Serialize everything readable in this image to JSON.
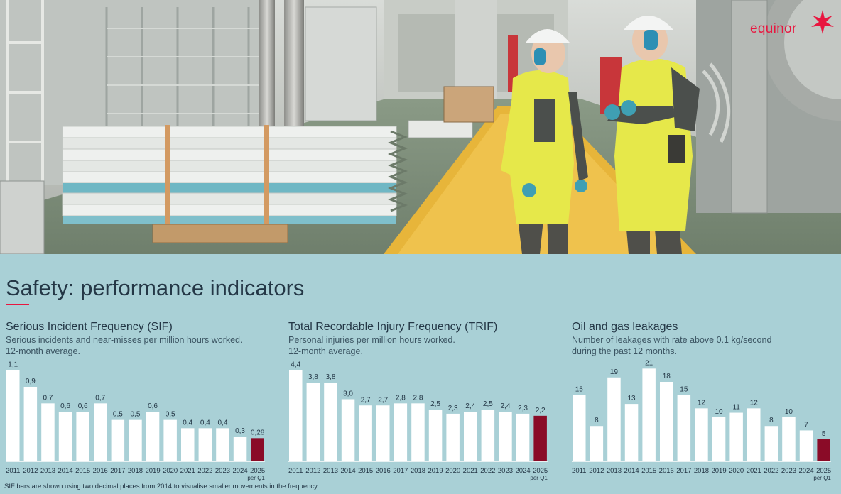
{
  "brand": {
    "logo_text": "equinor"
  },
  "page": {
    "title": "Safety: performance indicators",
    "footnote": "SIF bars are shown using two decimal places from 2014 to visualise smaller movements in the frequency."
  },
  "colors": {
    "bar": "#ffffff",
    "highlight": "#8a0b27",
    "accent": "#e8163f",
    "text": "#243746",
    "background": "#a9d0d6"
  },
  "chart_data": [
    {
      "type": "bar",
      "title": "Serious Incident Frequency (SIF)",
      "subtitle_lines": [
        "Serious incidents and near-misses per million hours worked.",
        "12-month average."
      ],
      "categories": [
        "2011",
        "2012",
        "2013",
        "2014",
        "2015",
        "2016",
        "2017",
        "2018",
        "2019",
        "2020",
        "2021",
        "2022",
        "2023",
        "2024",
        "2025"
      ],
      "last_category_note": "per Q1",
      "values": [
        1.1,
        0.9,
        0.7,
        0.6,
        0.6,
        0.7,
        0.5,
        0.5,
        0.6,
        0.5,
        0.4,
        0.4,
        0.4,
        0.3,
        0.28
      ],
      "value_labels": [
        "1,1",
        "0,9",
        "0,7",
        "0,6",
        "0,6",
        "0,7",
        "0,5",
        "0,5",
        "0,6",
        "0,5",
        "0,4",
        "0,4",
        "0,4",
        "0,3",
        "0,28"
      ],
      "highlight_last": true,
      "ylim": [
        0,
        1.2
      ]
    },
    {
      "type": "bar",
      "title": "Total Recordable Injury Frequency (TRIF)",
      "subtitle_lines": [
        "Personal injuries per million hours worked.",
        "12-month average."
      ],
      "categories": [
        "2011",
        "2012",
        "2013",
        "2014",
        "2015",
        "2016",
        "2017",
        "2018",
        "2019",
        "2020",
        "2021",
        "2022",
        "2023",
        "2024",
        "2025"
      ],
      "last_category_note": "per Q1",
      "values": [
        4.4,
        3.8,
        3.8,
        3.0,
        2.7,
        2.7,
        2.8,
        2.8,
        2.5,
        2.3,
        2.4,
        2.5,
        2.4,
        2.3,
        2.2
      ],
      "value_labels": [
        "4,4",
        "3,8",
        "3,8",
        "3,0",
        "2,7",
        "2,7",
        "2,8",
        "2,8",
        "2,5",
        "2,3",
        "2,4",
        "2,5",
        "2,4",
        "2,3",
        "2,2"
      ],
      "highlight_last": true,
      "ylim": [
        0,
        4.8
      ]
    },
    {
      "type": "bar",
      "title": "Oil and gas leakages",
      "subtitle_lines": [
        "Number of leakages with rate above 0.1 kg/second",
        "during the past 12 months."
      ],
      "categories": [
        "2011",
        "2012",
        "2013",
        "2014",
        "2015",
        "2016",
        "2017",
        "2018",
        "2019",
        "2020",
        "2021",
        "2022",
        "2023",
        "2024",
        "2025"
      ],
      "last_category_note": "per Q1",
      "values": [
        15,
        8,
        19,
        13,
        21,
        18,
        15,
        12,
        10,
        11,
        12,
        8,
        10,
        7,
        5
      ],
      "value_labels": [
        "15",
        "8",
        "19",
        "13",
        "21",
        "18",
        "15",
        "12",
        "10",
        "11",
        "12",
        "8",
        "10",
        "7",
        "5"
      ],
      "highlight_last": true,
      "ylim": [
        0,
        22.5
      ]
    }
  ]
}
